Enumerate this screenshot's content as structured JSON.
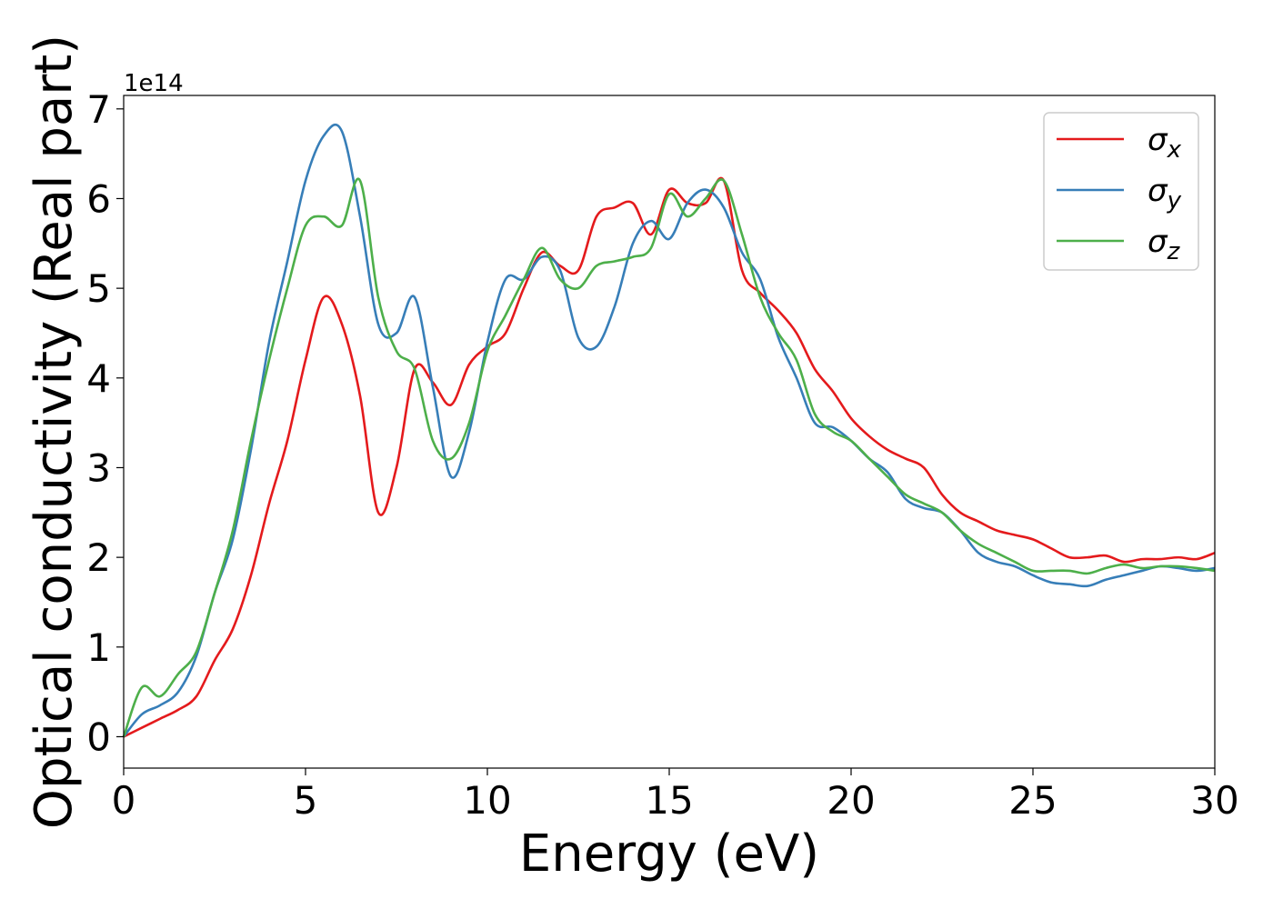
{
  "chart_data": {
    "type": "line",
    "xlabel": "Energy (eV)",
    "ylabel": "Optical conductivity (Real part)",
    "y_offset_label": "1e14",
    "xlim": [
      0,
      30
    ],
    "ylim": [
      -0.35,
      7.15
    ],
    "x_ticks": [
      0,
      5,
      10,
      15,
      20,
      25,
      30
    ],
    "x_tick_labels": [
      "0",
      "5",
      "10",
      "15",
      "20",
      "25",
      "30"
    ],
    "y_ticks": [
      0,
      1,
      2,
      3,
      4,
      5,
      6,
      7
    ],
    "y_tick_labels": [
      "0",
      "1",
      "2",
      "3",
      "4",
      "5",
      "6",
      "7"
    ],
    "grid": false,
    "legend_position": "top-right",
    "x": [
      0,
      0.5,
      1.0,
      1.5,
      2.0,
      2.5,
      3.0,
      3.5,
      4.0,
      4.5,
      5.0,
      5.5,
      6.0,
      6.5,
      7.0,
      7.5,
      8.0,
      8.5,
      9.0,
      9.5,
      10.0,
      10.5,
      11.0,
      11.5,
      12.0,
      12.5,
      13.0,
      13.5,
      14.0,
      14.5,
      15.0,
      15.5,
      16.0,
      16.5,
      17.0,
      17.5,
      18.0,
      18.5,
      19.0,
      19.5,
      20.0,
      20.5,
      21.0,
      21.5,
      22.0,
      22.5,
      23.0,
      23.5,
      24.0,
      24.5,
      25.0,
      25.5,
      26.0,
      26.5,
      27.0,
      27.5,
      28.0,
      28.5,
      29.0,
      29.5,
      30.0
    ],
    "series": [
      {
        "name": "σx",
        "color": "#e41a1c",
        "values": [
          0,
          0.1,
          0.2,
          0.3,
          0.45,
          0.85,
          1.2,
          1.8,
          2.6,
          3.3,
          4.2,
          4.9,
          4.6,
          3.8,
          2.5,
          3.0,
          4.1,
          3.95,
          3.7,
          4.15,
          4.35,
          4.5,
          5.0,
          5.4,
          5.25,
          5.2,
          5.8,
          5.9,
          5.95,
          5.6,
          6.1,
          5.95,
          5.95,
          6.2,
          5.2,
          4.95,
          4.75,
          4.5,
          4.1,
          3.85,
          3.55,
          3.35,
          3.2,
          3.1,
          3.0,
          2.7,
          2.5,
          2.4,
          2.3,
          2.25,
          2.2,
          2.1,
          2.0,
          2.0,
          2.02,
          1.95,
          1.98,
          1.98,
          2.0,
          1.98,
          2.05
        ]
      },
      {
        "name": "σy",
        "color": "#377eb8",
        "values": [
          0,
          0.25,
          0.35,
          0.5,
          0.9,
          1.6,
          2.2,
          3.2,
          4.4,
          5.3,
          6.2,
          6.7,
          6.75,
          5.8,
          4.6,
          4.5,
          4.9,
          3.9,
          2.9,
          3.4,
          4.4,
          5.1,
          5.1,
          5.35,
          5.2,
          4.45,
          4.35,
          4.8,
          5.5,
          5.75,
          5.55,
          5.95,
          6.1,
          5.9,
          5.4,
          5.1,
          4.45,
          4.0,
          3.5,
          3.45,
          3.3,
          3.1,
          2.95,
          2.65,
          2.55,
          2.5,
          2.3,
          2.05,
          1.95,
          1.9,
          1.8,
          1.72,
          1.7,
          1.68,
          1.75,
          1.8,
          1.85,
          1.9,
          1.88,
          1.85,
          1.88
        ]
      },
      {
        "name": "σz",
        "color": "#4daf4a",
        "values": [
          0,
          0.55,
          0.45,
          0.7,
          0.95,
          1.6,
          2.3,
          3.3,
          4.2,
          5.0,
          5.7,
          5.8,
          5.7,
          6.2,
          4.9,
          4.3,
          4.1,
          3.3,
          3.1,
          3.5,
          4.3,
          4.7,
          5.1,
          5.45,
          5.1,
          5.0,
          5.25,
          5.3,
          5.35,
          5.45,
          6.05,
          5.8,
          6.0,
          6.2,
          5.6,
          4.9,
          4.5,
          4.2,
          3.6,
          3.4,
          3.3,
          3.1,
          2.9,
          2.7,
          2.6,
          2.5,
          2.3,
          2.15,
          2.05,
          1.95,
          1.85,
          1.85,
          1.85,
          1.82,
          1.88,
          1.92,
          1.88,
          1.9,
          1.9,
          1.88,
          1.85
        ]
      }
    ]
  }
}
